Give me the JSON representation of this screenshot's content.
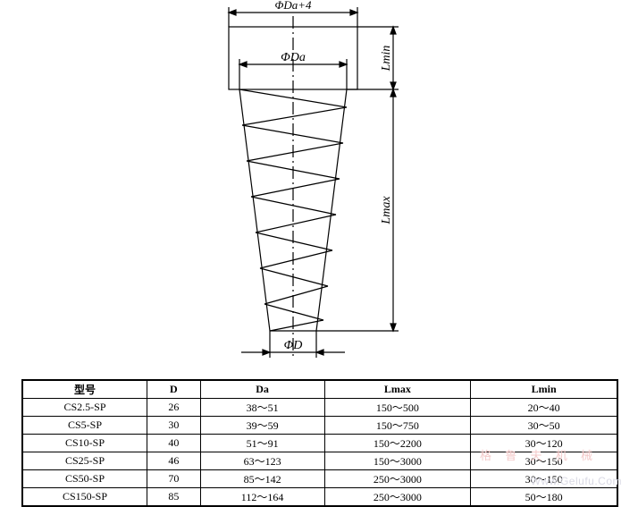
{
  "diagram": {
    "labels": {
      "top_dim": "ΦDa+4",
      "da_dim": "ΦDa",
      "d_dim": "ΦD",
      "lmin": "Lmin",
      "lmax": "Lmax"
    },
    "stroke": "#000000",
    "line_width": 1.2,
    "font_family": "SimSun",
    "font_size": 14
  },
  "table": {
    "columns": [
      "型号",
      "D",
      "Da",
      "Lmax",
      "Lmin"
    ],
    "rows": [
      [
        "CS2.5-SP",
        "26",
        "38～51",
        "150～500",
        "20～40"
      ],
      [
        "CS5-SP",
        "30",
        "39～59",
        "150～750",
        "30～50"
      ],
      [
        "CS10-SP",
        "40",
        "51～91",
        "150～2200",
        "30～120"
      ],
      [
        "CS25-SP",
        "46",
        "63～123",
        "150～3000",
        "30～150"
      ],
      [
        "CS50-SP",
        "70",
        "85～142",
        "250～3000",
        "30～150"
      ],
      [
        "CS150-SP",
        "85",
        "112～164",
        "250～3000",
        "50～180"
      ]
    ]
  },
  "watermark": {
    "url": "Www.Gelufu.Com",
    "cn": "格  鲁  夫  机  械"
  }
}
